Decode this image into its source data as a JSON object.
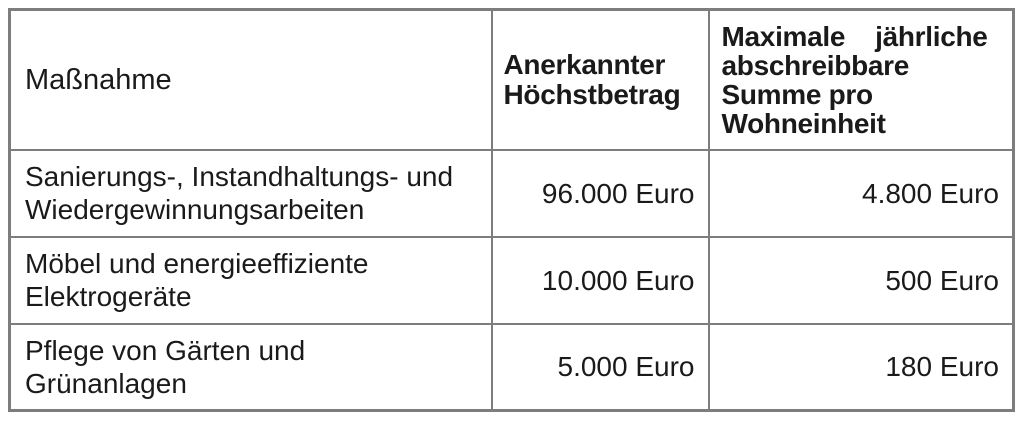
{
  "colors": {
    "border": "#7d7d7d",
    "text": "#1a1a1a",
    "background": "#ffffff"
  },
  "table": {
    "header": {
      "measure": "Maßnahme",
      "max_amount": "Anerkannter\nHöchstbetrag",
      "annual_sum": "Maximale    jährliche\nabschreibbare\nSumme pro\nWohneinheit"
    },
    "rows": [
      {
        "measure": "Sanierungs-, Instandhaltungs- und\nWiedergewinnungsarbeiten",
        "max_amount": "96.000 Euro",
        "annual_sum": "4.800 Euro"
      },
      {
        "measure": "Möbel und energieeffiziente\nElektrogeräte",
        "max_amount": "10.000 Euro",
        "annual_sum": "500 Euro"
      },
      {
        "measure": "Pflege von Gärten und\nGrünanlagen",
        "max_amount": "5.000 Euro",
        "annual_sum": "180 Euro"
      }
    ]
  }
}
